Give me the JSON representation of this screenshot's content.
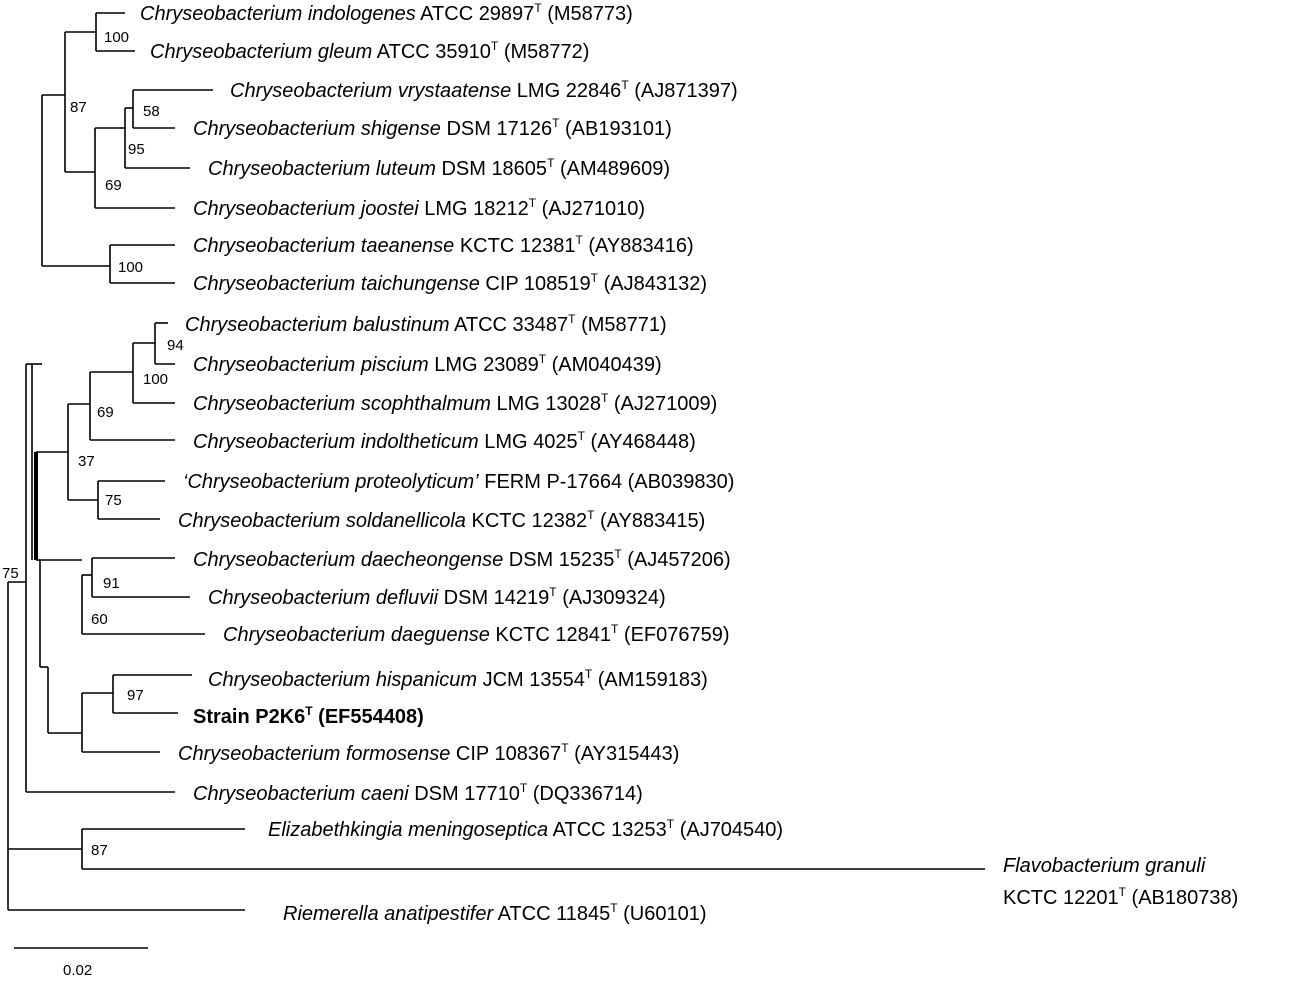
{
  "tree": {
    "taxa": {
      "t1": {
        "name": "Chryseobacterium indologenes",
        "strain": "ATCC 29897",
        "type": "T",
        "acc": "(M58773)"
      },
      "t2": {
        "name": "Chryseobacterium gleum",
        "strain": "ATCC 35910",
        "type": "T",
        "acc": "(M58772)"
      },
      "t3": {
        "name": "Chryseobacterium vrystaatense",
        "strain": "LMG 22846",
        "type": "T",
        "acc": "(AJ871397)"
      },
      "t4": {
        "name": "Chryseobacterium shigense",
        "strain": "DSM 17126",
        "type": "T",
        "acc": "(AB193101)"
      },
      "t5": {
        "name": "Chryseobacterium luteum",
        "strain": "DSM 18605",
        "type": "T",
        "acc": "(AM489609)"
      },
      "t6": {
        "name": "Chryseobacterium joostei",
        "strain": "LMG 18212",
        "type": "T",
        "acc": "(AJ271010)"
      },
      "t7": {
        "name": "Chryseobacterium taeanense",
        "strain": "KCTC 12381",
        "type": "T",
        "acc": "(AY883416)"
      },
      "t8": {
        "name": "Chryseobacterium taichungense",
        "strain": "CIP 108519",
        "type": "T",
        "acc": "(AJ843132)"
      },
      "t9": {
        "name": "Chryseobacterium balustinum",
        "strain": "ATCC 33487",
        "type": "T",
        "acc": "(M58771)"
      },
      "t10": {
        "name": "Chryseobacterium piscium",
        "strain": "LMG 23089",
        "type": "T",
        "acc": "(AM040439)"
      },
      "t11": {
        "name": "Chryseobacterium scophthalmum",
        "strain": "LMG 13028",
        "type": "T",
        "acc": "(AJ271009)"
      },
      "t12": {
        "name": "Chryseobacterium indoltheticum",
        "strain": "LMG 4025",
        "type": "T",
        "acc": "(AY468448)"
      },
      "t13": {
        "name": "‘Chryseobacterium proteolyticum’",
        "strain": "FERM P-17664",
        "type": "",
        "acc": "(AB039830)"
      },
      "t14": {
        "name": "Chryseobacterium soldanellicola",
        "strain": "KCTC 12382",
        "type": "T",
        "acc": "(AY883415)"
      },
      "t15": {
        "name": "Chryseobacterium daecheongense",
        "strain": "DSM 15235",
        "type": "T",
        "acc": "(AJ457206)"
      },
      "t16": {
        "name": "Chryseobacterium defluvii",
        "strain": "DSM 14219",
        "type": "T",
        "acc": "(AJ309324)"
      },
      "t17": {
        "name": "Chryseobacterium daeguense",
        "strain": "KCTC 12841",
        "type": "T",
        "acc": "(EF076759)"
      },
      "t18": {
        "name": "Chryseobacterium hispanicum",
        "strain": "JCM 13554",
        "type": "T",
        "acc": "(AM159183)"
      },
      "t19": {
        "name": "Strain P2K6",
        "strain": "",
        "type": "T",
        "acc": "(EF554408)"
      },
      "t20": {
        "name": "Chryseobacterium formosense",
        "strain": "CIP 108367",
        "type": "T",
        "acc": "(AY315443)"
      },
      "t21": {
        "name": "Chryseobacterium caeni",
        "strain": "DSM 17710",
        "type": "T",
        "acc": "(DQ336714)"
      },
      "t22": {
        "name": "Elizabethkingia meningoseptica",
        "strain": "ATCC 13253",
        "type": "T",
        "acc": "(AJ704540)"
      },
      "t23": {
        "name": "Flavobacterium granuli",
        "strain": "KCTC 12201",
        "type": "T",
        "acc": "(AB180738)"
      },
      "t24": {
        "name": "Riemerella anatipestifer",
        "strain": "ATCC 11845",
        "type": "T",
        "acc": "(U60101)"
      }
    },
    "bootstrap": {
      "b1": "100",
      "b2": "87",
      "b3": "58",
      "b4": "95",
      "b5": "69",
      "b6": "100",
      "b7": "94",
      "b8": "100",
      "b9": "69",
      "b10": "37",
      "b11": "75",
      "b12": "91",
      "b13": "60",
      "b14": "97",
      "b15": "75",
      "b16": "87"
    },
    "scale_bar_label": "0.02"
  }
}
